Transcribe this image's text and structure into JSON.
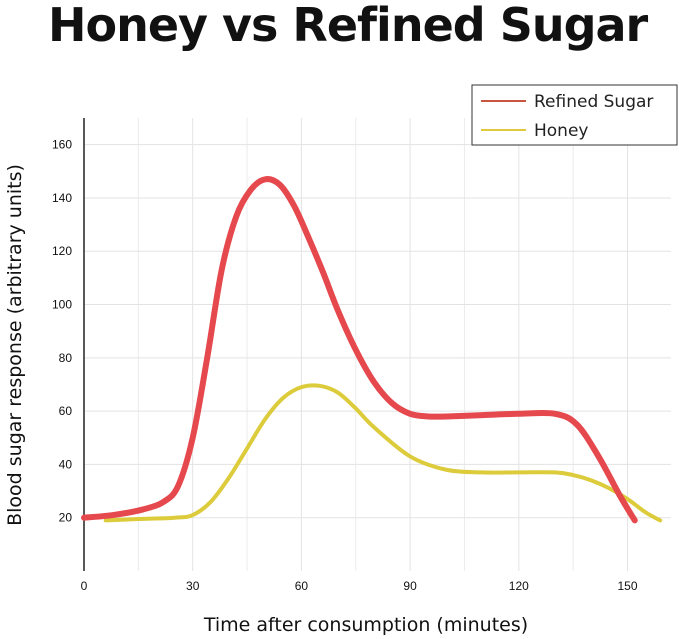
{
  "chart_data": {
    "type": "line",
    "title": "Honey vs Refined Sugar",
    "xlabel": "Time after consumption (minutes)",
    "ylabel": "Blood sugar response (arbitrary units)",
    "xlim": [
      0,
      162
    ],
    "ylim": [
      0,
      170
    ],
    "x_ticks": [
      0,
      30,
      60,
      90,
      120,
      150
    ],
    "y_ticks": [
      20,
      40,
      60,
      80,
      100,
      120,
      140,
      160
    ],
    "grid": true,
    "legend_position": "top-right",
    "series": [
      {
        "name": "Refined Sugar",
        "color": "#e5484d",
        "legend_color": "#c8553d",
        "x": [
          0,
          8,
          16,
          22,
          26,
          30,
          34,
          38,
          42,
          46,
          50,
          54,
          58,
          62,
          66,
          70,
          75,
          80,
          85,
          90,
          95,
          100,
          110,
          120,
          130,
          136,
          142,
          148,
          152
        ],
        "y": [
          20,
          21,
          23,
          26,
          32,
          50,
          80,
          113,
          133,
          143,
          147,
          145,
          137,
          125,
          112,
          98,
          83,
          71,
          63,
          59,
          58,
          58,
          58.5,
          59,
          59,
          55,
          43,
          28,
          19
        ]
      },
      {
        "name": "Honey",
        "color": "#dccb3a",
        "legend_color": "#e0c93c",
        "x": [
          6,
          15,
          25,
          30,
          35,
          40,
          45,
          50,
          55,
          60,
          65,
          70,
          75,
          80,
          90,
          100,
          110,
          120,
          130,
          135,
          140,
          145,
          150,
          155,
          159
        ],
        "y": [
          19,
          19.5,
          20,
          21,
          26,
          35,
          46,
          57,
          65,
          69,
          69.5,
          67,
          61,
          54,
          43,
          38,
          37,
          37,
          37,
          36,
          34,
          31,
          27,
          22,
          19
        ]
      }
    ]
  }
}
